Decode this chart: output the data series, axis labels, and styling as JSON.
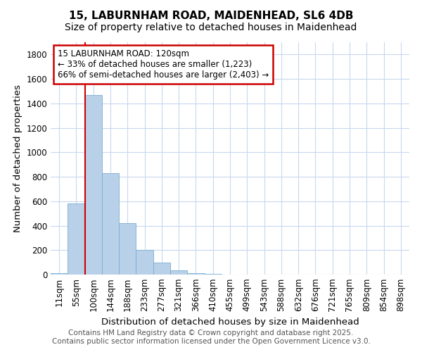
{
  "title_line1": "15, LABURNHAM ROAD, MAIDENHEAD, SL6 4DB",
  "title_line2": "Size of property relative to detached houses in Maidenhead",
  "xlabel": "Distribution of detached houses by size in Maidenhead",
  "ylabel": "Number of detached properties",
  "categories": [
    "11sqm",
    "55sqm",
    "100sqm",
    "144sqm",
    "188sqm",
    "233sqm",
    "277sqm",
    "321sqm",
    "366sqm",
    "410sqm",
    "455sqm",
    "499sqm",
    "543sqm",
    "588sqm",
    "632sqm",
    "676sqm",
    "721sqm",
    "765sqm",
    "809sqm",
    "854sqm",
    "898sqm"
  ],
  "values": [
    10,
    580,
    1470,
    830,
    420,
    200,
    100,
    35,
    10,
    3,
    1,
    0,
    0,
    0,
    0,
    0,
    0,
    0,
    0,
    0,
    0
  ],
  "bar_color": "#b8d0e8",
  "bar_edge_color": "#7aadd4",
  "vline_x_index": 2,
  "vline_color": "#cc0000",
  "annotation_text": "15 LABURNHAM ROAD: 120sqm\n← 33% of detached houses are smaller (1,223)\n66% of semi-detached houses are larger (2,403) →",
  "annotation_box_color": "#cc0000",
  "ylim": [
    0,
    1900
  ],
  "yticks": [
    0,
    200,
    400,
    600,
    800,
    1000,
    1200,
    1400,
    1600,
    1800
  ],
  "footer_line1": "Contains HM Land Registry data © Crown copyright and database right 2025.",
  "footer_line2": "Contains public sector information licensed under the Open Government Licence v3.0.",
  "fig_bg_color": "#ffffff",
  "plot_bg_color": "#ffffff",
  "grid_color": "#c8d8ee",
  "title_fontsize": 11,
  "subtitle_fontsize": 10,
  "axis_label_fontsize": 9.5,
  "tick_fontsize": 8.5,
  "annotation_fontsize": 8.5,
  "footer_fontsize": 7.5
}
